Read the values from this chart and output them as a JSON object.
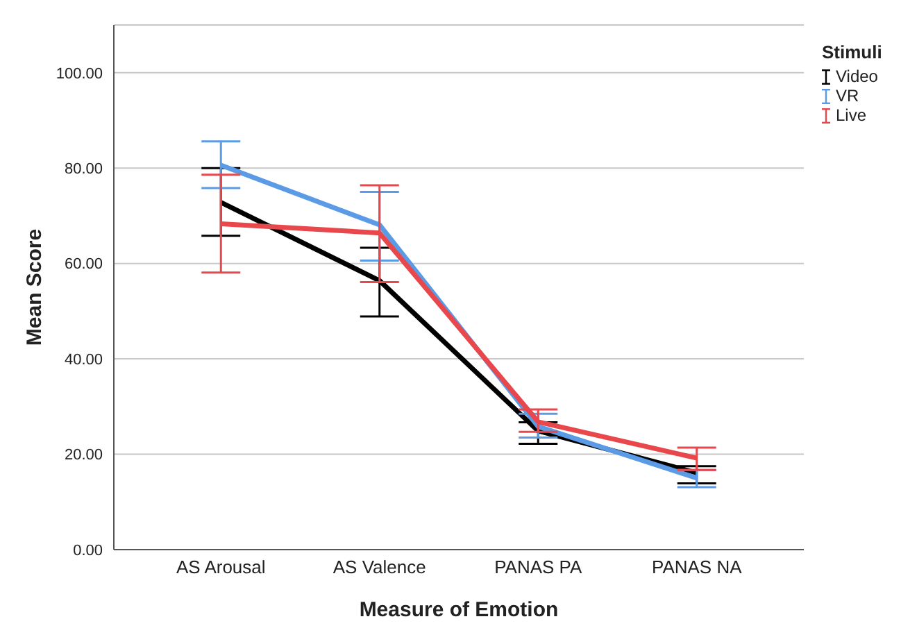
{
  "chart_data": {
    "type": "line",
    "xlabel": "Measure of Emotion",
    "ylabel": "Mean Score",
    "legend_title": "Stimuli",
    "categories": [
      "AS Arousal",
      "AS Valence",
      "PANAS PA",
      "PANAS NA"
    ],
    "series": [
      {
        "name": "Video",
        "color": "#000000",
        "values": [
          72.8,
          56.4,
          24.9,
          16.1
        ],
        "errors": [
          [
            65.8,
            80.0
          ],
          [
            48.9,
            63.3
          ],
          [
            22.2,
            26.7
          ],
          [
            13.9,
            17.5
          ]
        ]
      },
      {
        "name": "VR",
        "color": "#5b9be6",
        "values": [
          80.6,
          68.1,
          25.8,
          15.0
        ],
        "errors": [
          [
            75.8,
            85.6
          ],
          [
            60.6,
            75.0
          ],
          [
            23.5,
            28.5
          ],
          [
            13.1,
            16.7
          ]
        ]
      },
      {
        "name": "Live",
        "color": "#e8474c",
        "values": [
          68.3,
          66.4,
          26.8,
          19.2
        ],
        "errors": [
          [
            58.1,
            78.6
          ],
          [
            56.1,
            76.4
          ],
          [
            24.7,
            29.4
          ],
          [
            16.7,
            21.4
          ]
        ]
      }
    ],
    "ylim": [
      0,
      110
    ],
    "yticks": [
      {
        "value": 0,
        "label": "0.00"
      },
      {
        "value": 20,
        "label": "20.00"
      },
      {
        "value": 40,
        "label": "40.00"
      },
      {
        "value": 60,
        "label": "60.00"
      },
      {
        "value": 80,
        "label": "80.00"
      },
      {
        "value": 100,
        "label": "100.00"
      }
    ],
    "grid": "y",
    "legend": "top right",
    "marker": "none",
    "line_style": "solid"
  }
}
